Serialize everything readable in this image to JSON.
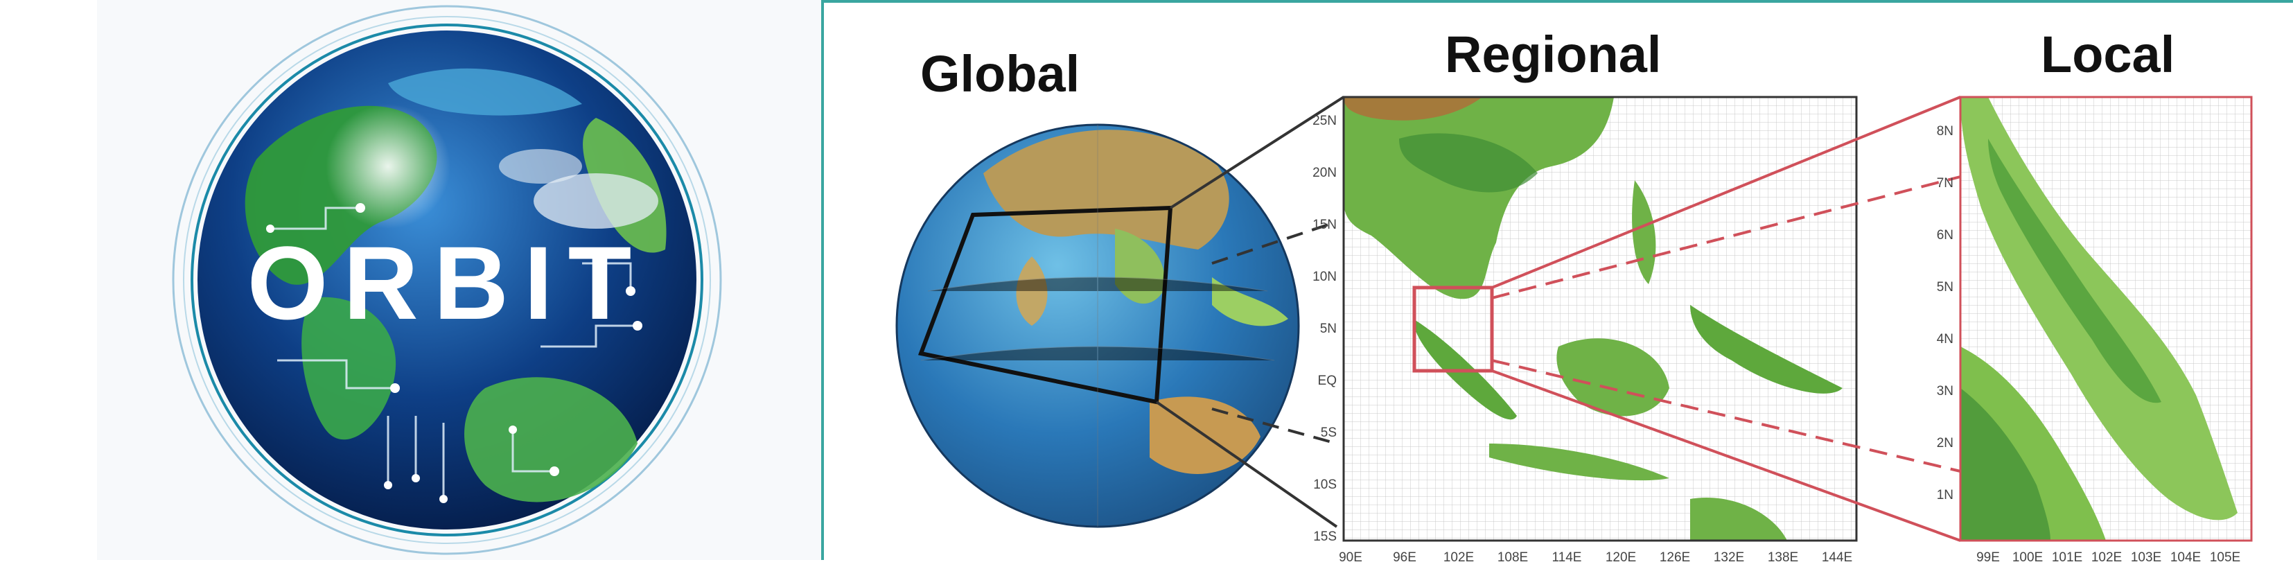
{
  "logo": {
    "text": "ORBIT"
  },
  "headings": {
    "global": "Global",
    "regional": "Regional",
    "local": "Local"
  },
  "regional_map": {
    "lat_labels": [
      "25N",
      "20N",
      "15N",
      "10N",
      "5N",
      "EQ",
      "5S",
      "10S",
      "15S"
    ],
    "lon_labels": [
      "90E",
      "96E",
      "102E",
      "108E",
      "114E",
      "120E",
      "126E",
      "132E",
      "138E",
      "144E"
    ]
  },
  "local_map": {
    "lat_labels": [
      "8N",
      "7N",
      "6N",
      "5N",
      "4N",
      "3N",
      "2N",
      "1N"
    ],
    "lon_labels": [
      "99E",
      "100E",
      "101E",
      "102E",
      "103E",
      "104E",
      "105E"
    ]
  },
  "colors": {
    "teal_frame": "#3aa6a0",
    "zoom_box_red": "#d0505a",
    "land_green": "#7fbf4d",
    "ocean_blue": "#2a78b8"
  }
}
